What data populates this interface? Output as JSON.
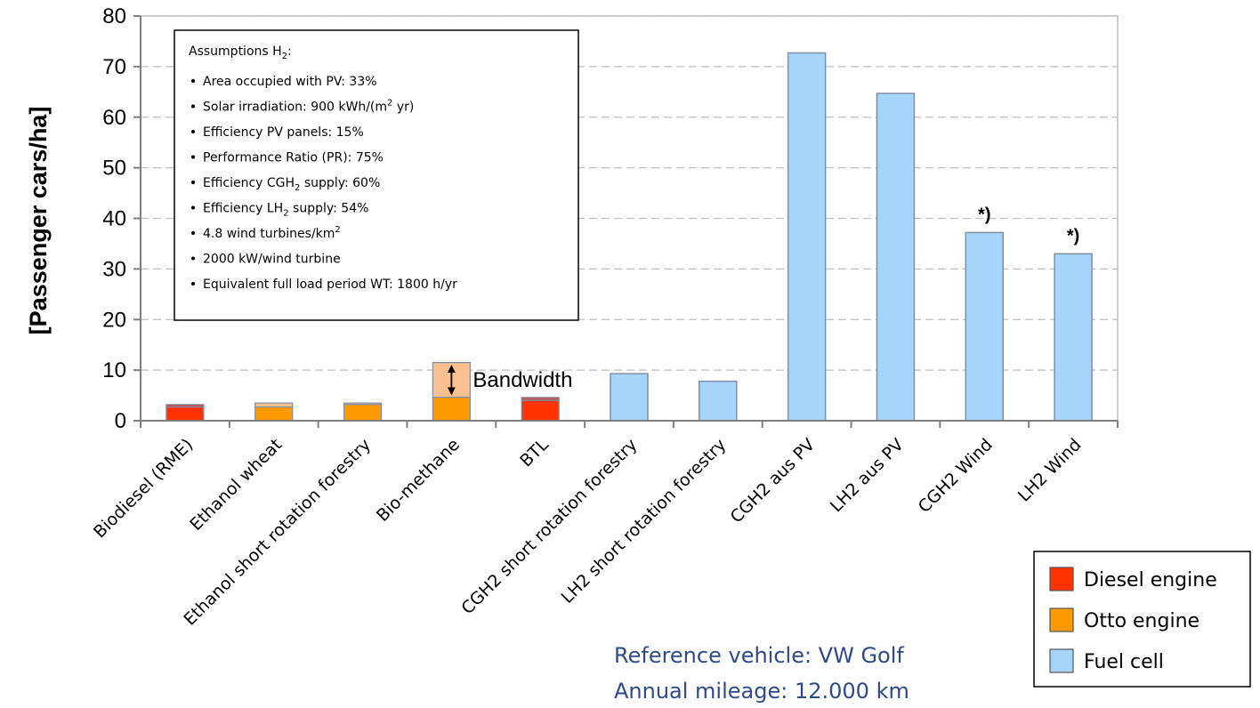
{
  "chart_data": {
    "type": "bar",
    "ylabel": "[Passenger cars/ha]",
    "ylim": [
      0,
      80
    ],
    "yticks": [
      "0",
      "10",
      "20",
      "30",
      "40",
      "50",
      "60",
      "70",
      "80"
    ],
    "categories": [
      "Biodiesel (RME)",
      "Ethanol wheat",
      "Ethanol short rotation forestry",
      "Bio-methane",
      "BTL",
      "CGH2 short rotation forestry",
      "LH2 short rotation forestry",
      "CGH2 aus PV",
      "LH2 aus PV",
      "CGH2 Wind",
      "LH2 Wind"
    ],
    "values": [
      3.2,
      3.5,
      3.5,
      11.5,
      4.6,
      9.3,
      7.8,
      72.7,
      64.7,
      37.2,
      33.0
    ],
    "range_low": [
      2.7,
      2.7,
      3.2,
      4.6,
      4.0,
      null,
      null,
      null,
      null,
      null,
      null
    ],
    "engine_type": [
      "diesel",
      "otto",
      "otto",
      "otto",
      "diesel",
      "fuelcell",
      "fuelcell",
      "fuelcell",
      "fuelcell",
      "fuelcell",
      "fuelcell"
    ],
    "star_marks": [
      "",
      "",
      "",
      "",
      "",
      "",
      "",
      "",
      "",
      "*)",
      "*)"
    ],
    "bandwidth_label": "Bandwidth",
    "legend": {
      "placement": "bottom-right",
      "items": [
        {
          "label": "Diesel engine",
          "key": "diesel"
        },
        {
          "label": "Otto engine",
          "key": "otto"
        },
        {
          "label": "Fuel cell",
          "key": "fuelcell"
        }
      ]
    },
    "colors": {
      "diesel": "#ff3300",
      "diesel_top": "#c0504d",
      "otto": "#ff9900",
      "otto_top": "#fac090",
      "fuelcell": "#a6d4fa",
      "edge": "#7f8fa6"
    },
    "assumptions": {
      "title": "Assumptions H",
      "title_sub": "2",
      "title_end": ":",
      "items": [
        {
          "pre": "Area occupied with PV: 33%"
        },
        {
          "pre": "Solar irradiation: 900 kWh/(m",
          "sup": "2",
          "post": " yr)"
        },
        {
          "pre": "Efficiency PV panels: 15%"
        },
        {
          "pre": "Performance Ratio (PR): 75%"
        },
        {
          "pre": "Efficiency CGH",
          "sub": "2",
          "post": " supply: 60%"
        },
        {
          "pre": "Efficiency LH",
          "sub": "2",
          "post": " supply: 54%"
        },
        {
          "pre": "4.8 wind turbines/km",
          "sup": "2"
        },
        {
          "pre": "2000 kW/wind turbine"
        },
        {
          "pre": "Equivalent full load period WT: 1800 h/yr"
        }
      ]
    },
    "reference": [
      "Reference vehicle: VW Golf",
      "Annual mileage: 12.000 km"
    ]
  }
}
